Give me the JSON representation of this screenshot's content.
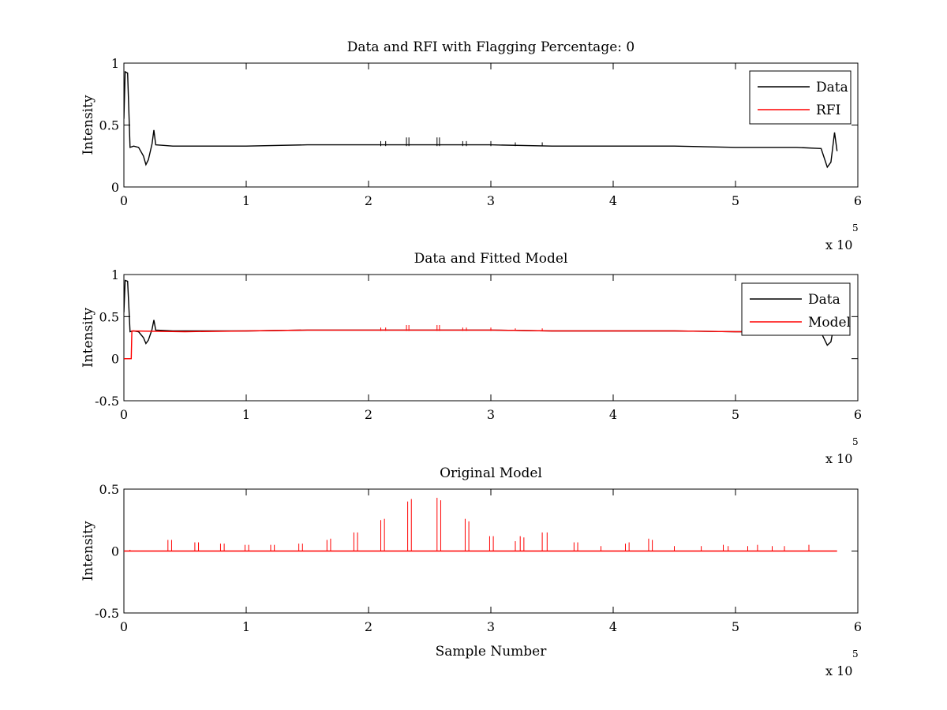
{
  "figure": {
    "background": "#ffffff",
    "series_colors": {
      "data": "#000000",
      "red": "#ff0000"
    }
  },
  "chart_data": [
    {
      "type": "line",
      "title": "Data and RFI with Flagging Percentage: 0",
      "xlabel": "",
      "ylabel": "Intensity",
      "xlim": [
        0,
        6
      ],
      "ylim": [
        0,
        1
      ],
      "x_multiplier": {
        "base": "x 10",
        "exponent": "5"
      },
      "xticks": [
        "0",
        "1",
        "2",
        "3",
        "4",
        "5",
        "6"
      ],
      "yticks": [
        "0",
        "0.5",
        "1"
      ],
      "grid": false,
      "legend": {
        "placement": "top-right",
        "entries": [
          {
            "label": "Data",
            "color": "#000000"
          },
          {
            "label": "RFI",
            "color": "#ff0000"
          }
        ]
      },
      "series": [
        {
          "name": "Data",
          "color": "#000000",
          "points": [
            [
              0.0,
              0.55
            ],
            [
              0.01,
              0.93
            ],
            [
              0.03,
              0.92
            ],
            [
              0.05,
              0.32
            ],
            [
              0.08,
              0.33
            ],
            [
              0.12,
              0.32
            ],
            [
              0.16,
              0.25
            ],
            [
              0.18,
              0.18
            ],
            [
              0.2,
              0.22
            ],
            [
              0.23,
              0.35
            ],
            [
              0.245,
              0.46
            ],
            [
              0.26,
              0.34
            ],
            [
              0.4,
              0.33
            ],
            [
              1.0,
              0.33
            ],
            [
              1.5,
              0.34
            ],
            [
              2.0,
              0.34
            ],
            [
              2.5,
              0.34
            ],
            [
              3.0,
              0.34
            ],
            [
              3.5,
              0.33
            ],
            [
              4.0,
              0.33
            ],
            [
              4.5,
              0.33
            ],
            [
              5.0,
              0.32
            ],
            [
              5.5,
              0.32
            ],
            [
              5.7,
              0.31
            ],
            [
              5.75,
              0.16
            ],
            [
              5.78,
              0.2
            ],
            [
              5.81,
              0.44
            ],
            [
              5.83,
              0.29
            ]
          ]
        }
      ],
      "spikes": [
        {
          "color": "#000000",
          "base": 0.33,
          "peaks": [
            [
              2.1,
              0.37
            ],
            [
              2.14,
              0.37
            ],
            [
              2.31,
              0.4
            ],
            [
              2.33,
              0.4
            ],
            [
              2.56,
              0.4
            ],
            [
              2.58,
              0.4
            ],
            [
              2.77,
              0.37
            ],
            [
              2.8,
              0.37
            ],
            [
              3.0,
              0.37
            ],
            [
              3.2,
              0.36
            ],
            [
              3.42,
              0.36
            ]
          ]
        }
      ]
    },
    {
      "type": "line",
      "title": "Data and Fitted Model",
      "xlabel": "",
      "ylabel": "Intensity",
      "xlim": [
        0,
        6
      ],
      "ylim": [
        -0.5,
        1
      ],
      "x_multiplier": {
        "base": "x 10",
        "exponent": "5"
      },
      "xticks": [
        "0",
        "1",
        "2",
        "3",
        "4",
        "5",
        "6"
      ],
      "yticks": [
        "-0.5",
        "0",
        "0.5",
        "1"
      ],
      "grid": false,
      "legend": {
        "placement": "top-right",
        "entries": [
          {
            "label": "Data",
            "color": "#000000"
          },
          {
            "label": "Model",
            "color": "#ff0000"
          }
        ]
      },
      "series": [
        {
          "name": "Data",
          "color": "#000000",
          "points": [
            [
              0.0,
              0.55
            ],
            [
              0.01,
              0.93
            ],
            [
              0.03,
              0.92
            ],
            [
              0.05,
              0.32
            ],
            [
              0.08,
              0.33
            ],
            [
              0.12,
              0.32
            ],
            [
              0.16,
              0.25
            ],
            [
              0.18,
              0.18
            ],
            [
              0.2,
              0.22
            ],
            [
              0.23,
              0.35
            ],
            [
              0.245,
              0.46
            ],
            [
              0.26,
              0.34
            ],
            [
              0.4,
              0.33
            ],
            [
              1.0,
              0.33
            ],
            [
              1.5,
              0.34
            ],
            [
              2.0,
              0.34
            ],
            [
              2.5,
              0.34
            ],
            [
              3.0,
              0.34
            ],
            [
              3.5,
              0.33
            ],
            [
              4.0,
              0.33
            ],
            [
              4.5,
              0.33
            ],
            [
              5.0,
              0.32
            ],
            [
              5.5,
              0.32
            ],
            [
              5.7,
              0.31
            ],
            [
              5.75,
              0.16
            ],
            [
              5.78,
              0.2
            ],
            [
              5.81,
              0.44
            ],
            [
              5.83,
              0.29
            ]
          ]
        },
        {
          "name": "Model",
          "color": "#ff0000",
          "points": [
            [
              0.0,
              0.0
            ],
            [
              0.06,
              0.0
            ],
            [
              0.065,
              0.33
            ],
            [
              0.5,
              0.32
            ],
            [
              1.0,
              0.33
            ],
            [
              1.5,
              0.34
            ],
            [
              2.0,
              0.34
            ],
            [
              2.5,
              0.34
            ],
            [
              3.0,
              0.34
            ],
            [
              3.5,
              0.33
            ],
            [
              4.0,
              0.33
            ],
            [
              4.5,
              0.33
            ],
            [
              5.0,
              0.32
            ],
            [
              5.5,
              0.32
            ],
            [
              5.74,
              0.31
            ]
          ]
        }
      ],
      "spikes": [
        {
          "color": "#ff0000",
          "base": 0.33,
          "peaks": [
            [
              2.1,
              0.37
            ],
            [
              2.14,
              0.37
            ],
            [
              2.31,
              0.4
            ],
            [
              2.33,
              0.4
            ],
            [
              2.56,
              0.4
            ],
            [
              2.58,
              0.4
            ],
            [
              2.77,
              0.37
            ],
            [
              2.8,
              0.37
            ],
            [
              3.0,
              0.37
            ],
            [
              3.2,
              0.36
            ],
            [
              3.42,
              0.36
            ]
          ]
        }
      ]
    },
    {
      "type": "line",
      "title": "Original Model",
      "xlabel": "Sample Number",
      "ylabel": "Intensity",
      "xlim": [
        0,
        6
      ],
      "ylim": [
        -0.5,
        0.5
      ],
      "x_multiplier": {
        "base": "x 10",
        "exponent": "5"
      },
      "xticks": [
        "0",
        "1",
        "2",
        "3",
        "4",
        "5",
        "6"
      ],
      "yticks": [
        "-0.5",
        "0",
        "0.5"
      ],
      "grid": false,
      "series": [
        {
          "name": "",
          "color": "#ff0000",
          "points": [
            [
              0.0,
              0.0
            ],
            [
              5.83,
              0.0
            ]
          ]
        }
      ],
      "spikes": [
        {
          "color": "#ff0000",
          "base": 0.0,
          "peaks": [
            [
              0.05,
              0.01
            ],
            [
              0.36,
              0.09
            ],
            [
              0.39,
              0.09
            ],
            [
              0.58,
              0.07
            ],
            [
              0.61,
              0.07
            ],
            [
              0.79,
              0.06
            ],
            [
              0.82,
              0.06
            ],
            [
              0.99,
              0.05
            ],
            [
              1.02,
              0.05
            ],
            [
              1.2,
              0.05
            ],
            [
              1.23,
              0.05
            ],
            [
              1.43,
              0.06
            ],
            [
              1.46,
              0.06
            ],
            [
              1.66,
              0.09
            ],
            [
              1.69,
              0.1
            ],
            [
              1.88,
              0.15
            ],
            [
              1.91,
              0.15
            ],
            [
              2.1,
              0.25
            ],
            [
              2.13,
              0.26
            ],
            [
              2.32,
              0.4
            ],
            [
              2.35,
              0.42
            ],
            [
              2.56,
              0.43
            ],
            [
              2.59,
              0.41
            ],
            [
              2.79,
              0.26
            ],
            [
              2.82,
              0.24
            ],
            [
              2.99,
              0.12
            ],
            [
              3.02,
              0.12
            ],
            [
              3.2,
              0.08
            ],
            [
              3.24,
              0.12
            ],
            [
              3.27,
              0.11
            ],
            [
              3.42,
              0.15
            ],
            [
              3.46,
              0.15
            ],
            [
              3.68,
              0.07
            ],
            [
              3.71,
              0.07
            ],
            [
              3.9,
              0.04
            ],
            [
              4.1,
              0.06
            ],
            [
              4.13,
              0.07
            ],
            [
              4.29,
              0.1
            ],
            [
              4.32,
              0.09
            ],
            [
              4.5,
              0.04
            ],
            [
              4.72,
              0.04
            ],
            [
              4.9,
              0.05
            ],
            [
              4.94,
              0.04
            ],
            [
              5.1,
              0.04
            ],
            [
              5.18,
              0.05
            ],
            [
              5.3,
              0.04
            ],
            [
              5.4,
              0.04
            ],
            [
              5.6,
              0.05
            ]
          ]
        }
      ]
    }
  ]
}
